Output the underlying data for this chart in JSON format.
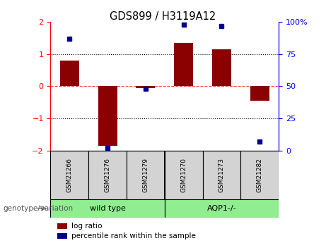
{
  "title": "GDS899 / H3119A12",
  "samples": [
    "GSM21266",
    "GSM21276",
    "GSM21279",
    "GSM21270",
    "GSM21273",
    "GSM21282"
  ],
  "log_ratio": [
    0.8,
    -1.85,
    -0.05,
    1.35,
    1.15,
    -0.45
  ],
  "percentile_rank": [
    87,
    2,
    48,
    98,
    97,
    7
  ],
  "bar_color": "#8B0000",
  "dot_color": "#00008B",
  "ylim_left": [
    -2,
    2
  ],
  "ylim_right": [
    0,
    100
  ],
  "yticks_left": [
    -2,
    -1,
    0,
    1,
    2
  ],
  "yticks_right": [
    0,
    25,
    50,
    75,
    100
  ],
  "yticklabels_right": [
    "0",
    "25",
    "50",
    "75",
    "100%"
  ],
  "bg_color": "#ffffff",
  "group_label": "genotype/variation",
  "wt_label": "wild type",
  "aqp_label": "AQP1-/-",
  "wt_color": "#90EE90",
  "aqp_color": "#90EE90",
  "sample_box_color": "#d3d3d3",
  "legend_log_ratio": "log ratio",
  "legend_percentile": "percentile rank within the sample"
}
